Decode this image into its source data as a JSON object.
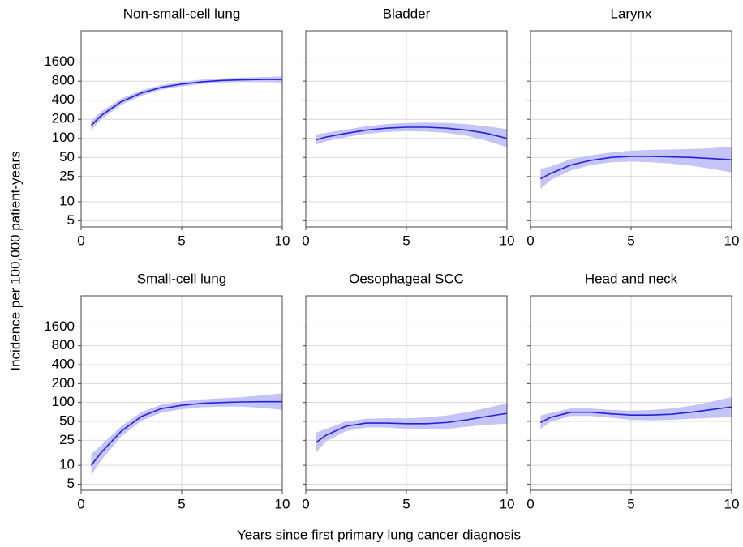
{
  "xlabel": "Years since first primary lung cancer diagnosis",
  "ylabel": "Incidence per 100,000 patient-years",
  "chart_data": [
    {
      "type": "line",
      "title": "Non-small-cell lung",
      "log_y": true,
      "grid": true,
      "color": "#2222dd",
      "band_color": "#c4c4f6",
      "x": [
        0.5,
        1,
        2,
        3,
        4,
        5,
        6,
        7,
        8,
        9,
        10
      ],
      "values": [
        160,
        230,
        380,
        520,
        640,
        720,
        780,
        820,
        840,
        850,
        850
      ],
      "lower": [
        135,
        200,
        340,
        470,
        590,
        665,
        720,
        760,
        775,
        775,
        760
      ],
      "upper": [
        190,
        265,
        425,
        575,
        695,
        780,
        845,
        885,
        910,
        930,
        950
      ],
      "xlim": [
        0,
        10
      ],
      "xticks": [
        0,
        5,
        10
      ],
      "ylim": [
        4,
        5000
      ],
      "yticks": [
        5,
        10,
        25,
        50,
        100,
        200,
        400,
        800,
        1600
      ]
    },
    {
      "type": "line",
      "title": "Bladder",
      "log_y": true,
      "grid": true,
      "color": "#2222dd",
      "band_color": "#c4c4f6",
      "x": [
        0.5,
        1,
        2,
        3,
        4,
        5,
        6,
        7,
        8,
        9,
        10
      ],
      "values": [
        95,
        105,
        120,
        135,
        145,
        150,
        150,
        145,
        135,
        120,
        100
      ],
      "lower": [
        80,
        90,
        105,
        118,
        126,
        130,
        128,
        122,
        110,
        92,
        72
      ],
      "upper": [
        115,
        122,
        138,
        155,
        168,
        175,
        178,
        175,
        168,
        155,
        140
      ],
      "xlim": [
        0,
        10
      ],
      "xticks": [
        0,
        5,
        10
      ],
      "ylim": [
        4,
        5000
      ],
      "yticks": [
        5,
        10,
        25,
        50,
        100,
        200,
        400,
        800,
        1600
      ]
    },
    {
      "type": "line",
      "title": "Larynx",
      "log_y": true,
      "grid": true,
      "color": "#2222dd",
      "band_color": "#c4c4f6",
      "x": [
        0.5,
        1,
        2,
        3,
        4,
        5,
        6,
        7,
        8,
        9,
        10
      ],
      "values": [
        23,
        28,
        38,
        45,
        50,
        52,
        52,
        51,
        50,
        48,
        46
      ],
      "lower": [
        16,
        22,
        31,
        38,
        42,
        43,
        42,
        40,
        37,
        33,
        29
      ],
      "upper": [
        33,
        36,
        47,
        54,
        60,
        64,
        66,
        67,
        68,
        70,
        74
      ],
      "xlim": [
        0,
        10
      ],
      "xticks": [
        0,
        5,
        10
      ],
      "ylim": [
        4,
        5000
      ],
      "yticks": [
        5,
        10,
        25,
        50,
        100,
        200,
        400,
        800,
        1600
      ]
    },
    {
      "type": "line",
      "title": "Small-cell lung",
      "log_y": true,
      "grid": true,
      "color": "#2222dd",
      "band_color": "#c4c4f6",
      "x": [
        0.5,
        1,
        2,
        3,
        4,
        5,
        6,
        7,
        8,
        9,
        10
      ],
      "values": [
        10,
        16,
        35,
        60,
        80,
        90,
        97,
        100,
        102,
        103,
        103
      ],
      "lower": [
        7,
        12,
        29,
        51,
        69,
        78,
        84,
        86,
        86,
        82,
        76
      ],
      "upper": [
        15,
        21,
        42,
        70,
        93,
        104,
        112,
        117,
        122,
        130,
        140
      ],
      "xlim": [
        0,
        10
      ],
      "xticks": [
        0,
        5,
        10
      ],
      "ylim": [
        4,
        5000
      ],
      "yticks": [
        5,
        10,
        25,
        50,
        100,
        200,
        400,
        800,
        1600
      ]
    },
    {
      "type": "line",
      "title": "Oesophageal SCC",
      "log_y": true,
      "grid": true,
      "color": "#2222dd",
      "band_color": "#c4c4f6",
      "x": [
        0.5,
        1,
        2,
        3,
        4,
        5,
        6,
        7,
        8,
        9,
        10
      ],
      "values": [
        23,
        30,
        42,
        47,
        47,
        46,
        46,
        48,
        53,
        60,
        67
      ],
      "lower": [
        16,
        24,
        35,
        40,
        40,
        38,
        37,
        38,
        41,
        44,
        46
      ],
      "upper": [
        33,
        38,
        50,
        55,
        56,
        56,
        58,
        62,
        70,
        82,
        97
      ],
      "xlim": [
        0,
        10
      ],
      "xticks": [
        0,
        5,
        10
      ],
      "ylim": [
        4,
        5000
      ],
      "yticks": [
        5,
        10,
        25,
        50,
        100,
        200,
        400,
        800,
        1600
      ]
    },
    {
      "type": "line",
      "title": "Head and neck",
      "log_y": true,
      "grid": true,
      "color": "#2222dd",
      "band_color": "#c4c4f6",
      "x": [
        0.5,
        1,
        2,
        3,
        4,
        5,
        6,
        7,
        8,
        9,
        10
      ],
      "values": [
        48,
        58,
        70,
        70,
        66,
        63,
        63,
        65,
        70,
        77,
        85
      ],
      "lower": [
        38,
        49,
        61,
        61,
        57,
        53,
        52,
        53,
        55,
        57,
        58
      ],
      "upper": [
        62,
        68,
        80,
        80,
        76,
        74,
        76,
        80,
        89,
        103,
        122
      ],
      "xlim": [
        0,
        10
      ],
      "xticks": [
        0,
        5,
        10
      ],
      "ylim": [
        4,
        5000
      ],
      "yticks": [
        5,
        10,
        25,
        50,
        100,
        200,
        400,
        800,
        1600
      ]
    }
  ]
}
